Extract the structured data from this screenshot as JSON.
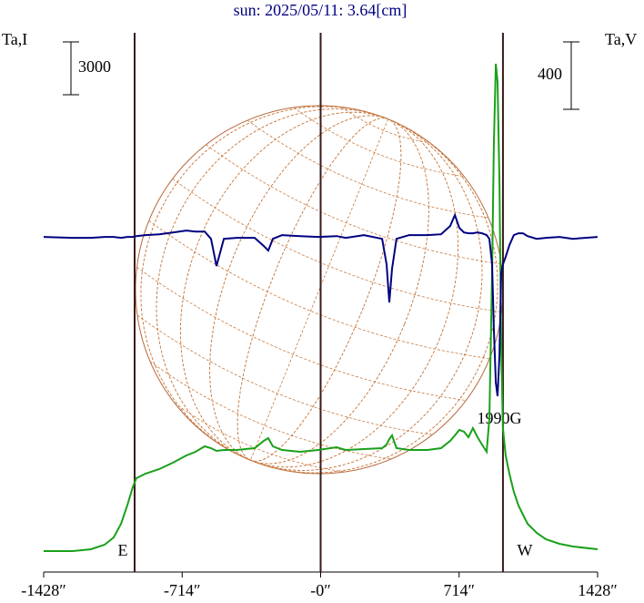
{
  "chart_data": {
    "type": "line",
    "title": "sun: 2025/05/11: 3.64[cm]",
    "ylabel": "Ta,I",
    "y2label": "Ta,V",
    "xlim": [
      -1428,
      1428
    ],
    "xticks": [
      {
        "value": -1428,
        "label": "-1428″"
      },
      {
        "value": -714,
        "label": "-714″"
      },
      {
        "value": 0,
        "label": "-0″"
      },
      {
        "value": 714,
        "label": "714″"
      },
      {
        "value": 1428,
        "label": "1428″"
      }
    ],
    "ylim": [
      -1190,
      29740
    ],
    "y2lim": [
      -1990,
      1245
    ],
    "vlines": [
      -959,
      0,
      940
    ],
    "scale_bars": [
      {
        "value": 3000,
        "axis": "y"
      },
      {
        "value": 400,
        "axis": "y2"
      }
    ],
    "annotations": [
      "E",
      "W",
      "1990G"
    ],
    "x": [
      -1428,
      -1278,
      -1184,
      -1114,
      -1067,
      -1029,
      -997,
      -969,
      -950,
      -903,
      -832,
      -762,
      -692,
      -645,
      -598,
      -565,
      -537,
      -499,
      -434,
      -340,
      -293,
      -270,
      -246,
      -199,
      -106,
      -12,
      82,
      129,
      223,
      317,
      340,
      354,
      368,
      391,
      457,
      551,
      621,
      668,
      692,
      715,
      739,
      762,
      785,
      809,
      832,
      856,
      870,
      884,
      893,
      903,
      912,
      922,
      931,
      940,
      954,
      973,
      996,
      1020,
      1043,
      1067,
      1114,
      1161,
      1231,
      1301,
      1428
    ],
    "series": [
      {
        "color": "#1aa01a",
        "values": [
          0,
          0,
          103,
          362,
          776,
          1552,
          2586,
          3620,
          4138,
          4396,
          4655,
          5017,
          5431,
          5637,
          5948,
          5844,
          5689,
          5741,
          5741,
          5844,
          6258,
          6413,
          5948,
          5741,
          5637,
          5741,
          5896,
          5741,
          5793,
          5844,
          6051,
          6362,
          6568,
          5844,
          5741,
          5741,
          5844,
          6258,
          6568,
          6879,
          6775,
          6465,
          6982,
          6465,
          6051,
          5637,
          7499,
          15775,
          23015,
          27670,
          26636,
          20947,
          11637,
          6982,
          5431,
          4396,
          3362,
          2586,
          2069,
          1552,
          1034,
          672,
          414,
          259,
          103
        ]
      },
      {
        "color": "#000080",
        "axis": "y2",
        "values": [
          0,
          -5,
          -5,
          0,
          0,
          -5,
          0,
          0,
          5,
          11,
          16,
          27,
          38,
          32,
          32,
          -11,
          -173,
          -11,
          -5,
          -5,
          -54,
          -81,
          -11,
          11,
          5,
          0,
          5,
          -5,
          11,
          -11,
          -162,
          -389,
          -189,
          -11,
          11,
          11,
          16,
          65,
          130,
          54,
          27,
          22,
          22,
          27,
          22,
          11,
          -11,
          -162,
          -541,
          -865,
          -946,
          -703,
          -216,
          -162,
          -119,
          -49,
          11,
          22,
          22,
          5,
          -11,
          -5,
          0,
          -11,
          0
        ]
      }
    ]
  }
}
